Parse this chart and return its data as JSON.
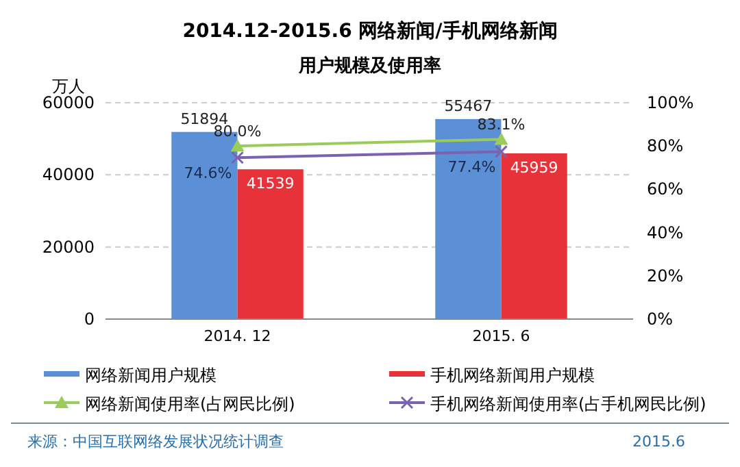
{
  "chart_data": {
    "type": "bar",
    "title": "2014.12-2015.6 网络新闻/手机网络新闻",
    "subtitle": "用户规模及使用率",
    "ylabel": "万人",
    "categories": [
      "2014. 12",
      "2015. 6"
    ],
    "series": [
      {
        "name": "网络新闻用户规模",
        "color": "#5b8fd6",
        "values": [
          51894,
          55467
        ],
        "value_labels": [
          "51894",
          "55467"
        ]
      },
      {
        "name": "手机网络新闻用户规模",
        "color": "#e8323a",
        "values": [
          41539,
          45959
        ],
        "value_labels": [
          "41539",
          "45959"
        ]
      },
      {
        "name": "网络新闻使用率(占网民比例)",
        "type": "line",
        "axis": "y2",
        "marker": "triangle",
        "color": "#9bcc5a",
        "values": [
          80.0,
          83.1
        ],
        "value_labels": [
          "80.0%",
          "83.1%"
        ]
      },
      {
        "name": "手机网络新闻使用率(占手机网民比例)",
        "type": "line",
        "axis": "y2",
        "marker": "cross",
        "color": "#7b62b0",
        "values": [
          74.6,
          77.4
        ],
        "value_labels": [
          "74.6%",
          "77.4%"
        ]
      }
    ],
    "ylim": [
      0,
      60000
    ],
    "yticks": [
      0,
      20000,
      40000,
      60000
    ],
    "y2lim": [
      0,
      100
    ],
    "y2ticks": [
      {
        "value": 0,
        "label": "0%"
      },
      {
        "value": 20,
        "label": "20%"
      },
      {
        "value": 40,
        "label": "40%"
      },
      {
        "value": 60,
        "label": "60%"
      },
      {
        "value": 80,
        "label": "80%"
      },
      {
        "value": 100,
        "label": "100%"
      }
    ],
    "grid": "y",
    "legend": "bottom",
    "annotations": [
      "来源：中国互联网络发展状况统计调查",
      "2015.6"
    ]
  }
}
